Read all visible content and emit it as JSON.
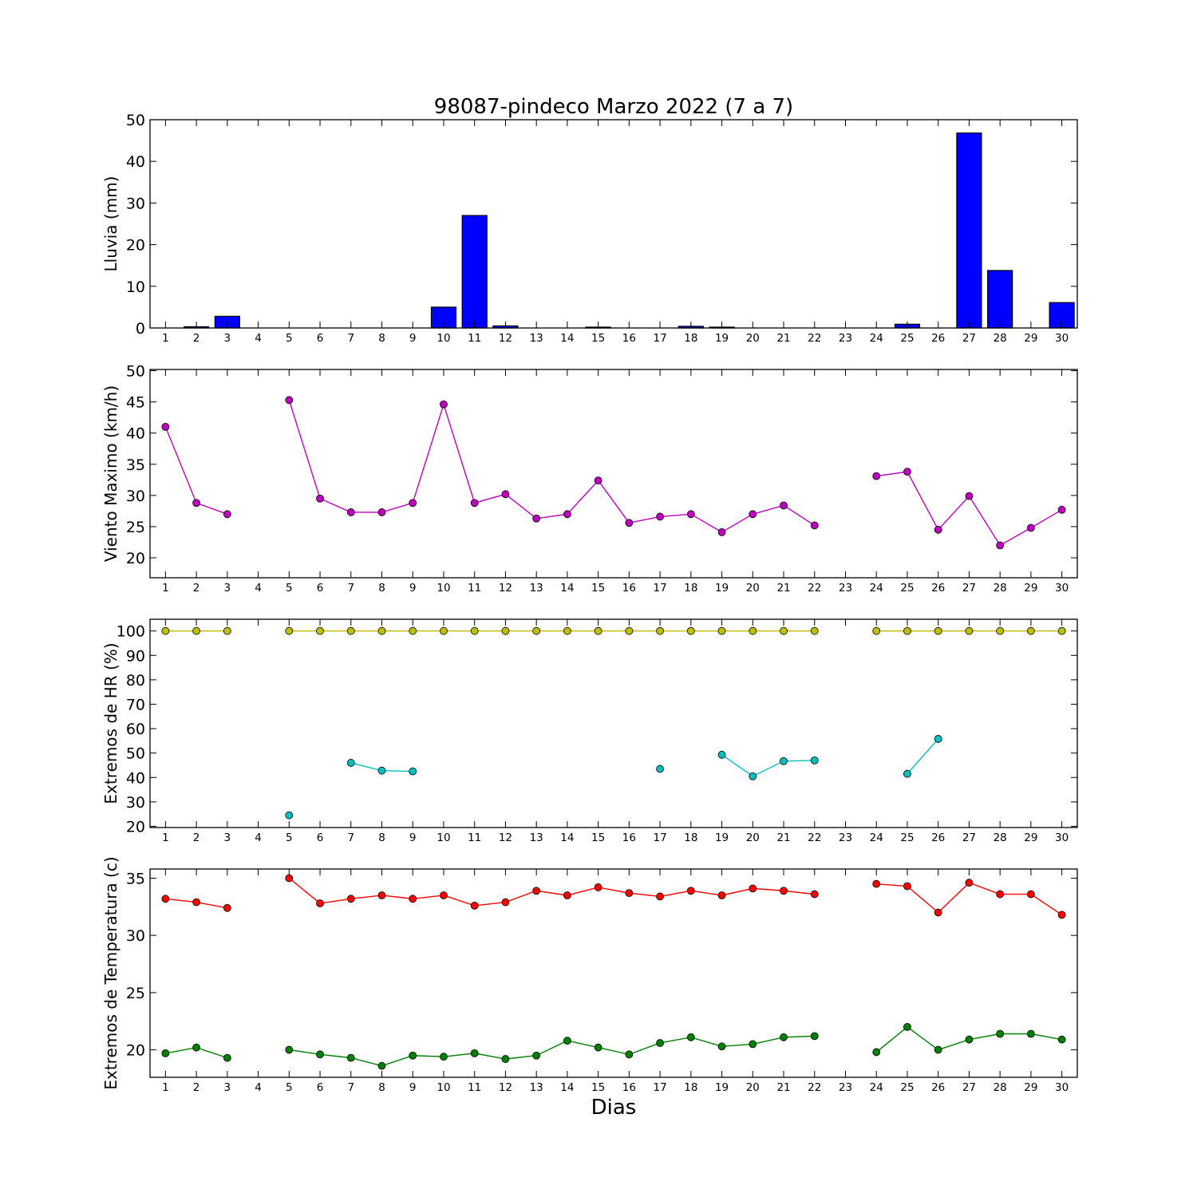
{
  "chart_data": {
    "title": "98087-pindeco Marzo 2022  (7 a 7)",
    "xlabel": "Dias",
    "days": [
      1,
      2,
      3,
      4,
      5,
      6,
      7,
      8,
      9,
      10,
      11,
      12,
      13,
      14,
      15,
      16,
      17,
      18,
      19,
      20,
      21,
      22,
      23,
      24,
      25,
      26,
      27,
      28,
      29,
      30
    ],
    "panels": [
      {
        "type": "bar",
        "ylabel": "Lluvia (mm)",
        "ylim": [
          0,
          50
        ],
        "yticks": [
          0,
          10,
          20,
          30,
          40,
          50
        ],
        "series": [
          {
            "color": "#0000ff",
            "values": [
              0.0,
              0.3,
              2.8,
              0.0,
              0.0,
              0.0,
              0.0,
              0.0,
              0.0,
              5.0,
              27.0,
              0.5,
              0.0,
              0.0,
              0.2,
              0.0,
              0.0,
              0.4,
              0.2,
              0.0,
              0.0,
              0.0,
              0.0,
              0.0,
              0.9,
              0.0,
              46.8,
              13.8,
              0.0,
              6.1
            ]
          }
        ]
      },
      {
        "type": "line",
        "ylabel": "Viento Maximo (km/h)",
        "ylim": [
          16.8,
          50.2
        ],
        "yticks": [
          20,
          25,
          30,
          35,
          40,
          45,
          50
        ],
        "series": [
          {
            "color": "#bf00bf",
            "values": [
              41.0,
              28.8,
              27.0,
              null,
              45.3,
              29.5,
              27.3,
              27.3,
              28.8,
              44.6,
              28.8,
              30.2,
              26.3,
              27.0,
              32.4,
              25.6,
              26.6,
              27.0,
              24.1,
              27.0,
              28.4,
              25.2,
              null,
              33.1,
              33.8,
              24.5,
              29.9,
              22.0,
              24.8,
              27.7
            ]
          }
        ]
      },
      {
        "type": "line",
        "ylabel": "Extremos de HR (%)",
        "ylim": [
          19.5,
          104.8
        ],
        "yticks": [
          20,
          30,
          40,
          50,
          60,
          70,
          80,
          90,
          100
        ],
        "series": [
          {
            "color": "#bfbf00",
            "values": [
              100,
              100,
              100,
              null,
              100,
              100,
              100,
              100,
              100,
              100,
              100,
              100,
              100,
              100,
              100,
              100,
              100,
              100,
              100,
              100,
              100,
              100,
              null,
              100,
              100,
              100,
              100,
              100,
              100,
              100
            ]
          },
          {
            "color": "#00bfbf",
            "values": [
              null,
              null,
              null,
              null,
              24.5,
              null,
              46.0,
              42.8,
              42.5,
              null,
              null,
              null,
              null,
              null,
              null,
              null,
              43.5,
              null,
              49.3,
              40.5,
              46.7,
              47.0,
              null,
              null,
              41.5,
              55.8,
              null,
              null,
              null,
              null
            ]
          }
        ]
      },
      {
        "type": "line",
        "ylabel": "Extremos de Temperatura (c)",
        "ylim": [
          17.6,
          35.8
        ],
        "yticks": [
          20,
          25,
          30,
          35
        ],
        "series": [
          {
            "color": "#ff0000",
            "values": [
              33.2,
              32.9,
              32.4,
              null,
              35.0,
              32.8,
              33.2,
              33.5,
              33.2,
              33.5,
              32.6,
              32.9,
              33.9,
              33.5,
              34.2,
              33.7,
              33.4,
              33.9,
              33.5,
              34.1,
              33.9,
              33.6,
              null,
              34.5,
              34.3,
              32.0,
              34.6,
              33.6,
              33.6,
              31.8
            ]
          },
          {
            "color": "#008000",
            "values": [
              19.7,
              20.2,
              19.3,
              null,
              20.0,
              19.6,
              19.3,
              18.6,
              19.5,
              19.4,
              19.7,
              19.2,
              19.5,
              20.8,
              20.2,
              19.6,
              20.6,
              21.1,
              20.3,
              20.5,
              21.1,
              21.2,
              null,
              19.8,
              22.0,
              20.0,
              20.9,
              21.4,
              21.4,
              20.9
            ]
          }
        ]
      }
    ]
  }
}
